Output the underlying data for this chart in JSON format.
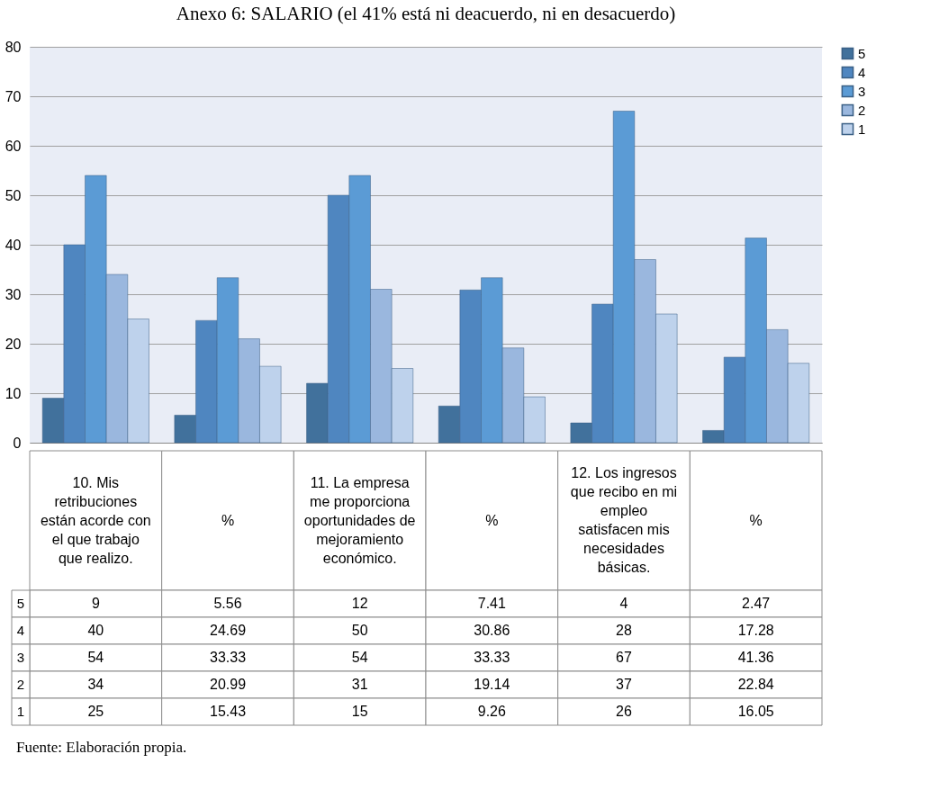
{
  "chart_data": {
    "type": "bar",
    "title": "Anexo 6: SALARIO (el 41% está ni deacuerdo, ni en desacuerdo)",
    "categories": [
      "10. Mis retribuciones están acorde con el que trabajo que realizo.",
      "%",
      "11. La empresa me proporciona oportunidades de mejoramiento económico.",
      "%",
      "12. Los ingresos que recibo en mi empleo satisfacen mis necesidades básicas.",
      "%"
    ],
    "series": [
      {
        "name": "5",
        "color": "#41719c",
        "values": [
          9,
          5.56,
          12,
          7.41,
          4,
          2.47
        ]
      },
      {
        "name": "4",
        "color": "#4f86c0",
        "values": [
          40,
          24.69,
          50,
          30.86,
          28,
          17.28
        ]
      },
      {
        "name": "3",
        "color": "#5b9bd5",
        "values": [
          54,
          33.33,
          54,
          33.33,
          67,
          41.36
        ]
      },
      {
        "name": "2",
        "color": "#9ab7de",
        "values": [
          34,
          20.99,
          31,
          19.14,
          37,
          22.84
        ]
      },
      {
        "name": "1",
        "color": "#bed2ec",
        "values": [
          25,
          15.43,
          15,
          9.26,
          26,
          16.05
        ]
      }
    ],
    "ylim": [
      0,
      80
    ],
    "yticks": [
      0,
      10,
      20,
      30,
      40,
      50,
      60,
      70,
      80
    ],
    "grid": "y",
    "legend": "right",
    "data_labels": true,
    "annotations": [
      "Fuente: Elaboración propia."
    ]
  }
}
